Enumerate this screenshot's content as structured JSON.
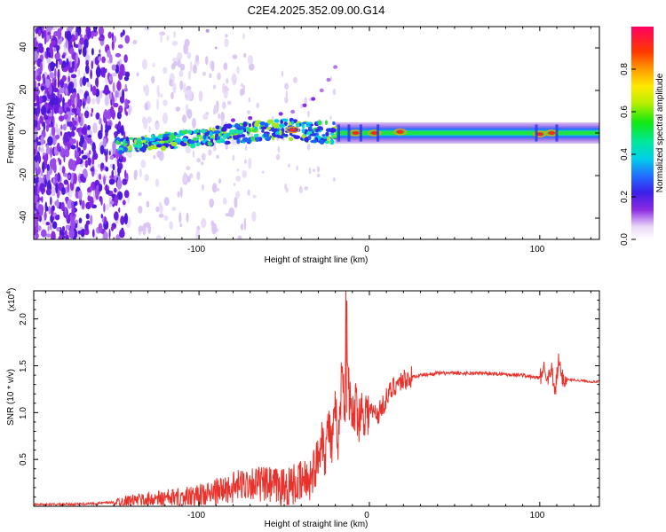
{
  "title": "C2E4.2025.352.09.00.G14",
  "top_panel": {
    "xlabel": "Height of straight line (km)",
    "ylabel": "Frequency (Hz)",
    "xticks": [
      "-100",
      "0",
      "100"
    ],
    "yticks": [
      "40",
      "20",
      "0",
      "-20",
      "-40"
    ]
  },
  "colorbar": {
    "label": "Normalized spectral amplitude",
    "ticks": [
      "0.0",
      "0.2",
      "0.4",
      "0.6",
      "0.8"
    ]
  },
  "bottom_panel": {
    "xlabel": "Height of straight line (km)",
    "ylabel": "SNR (10 * v/v)",
    "exponent": "(x10",
    "exponent_power": "4",
    "exponent_close": ")",
    "xticks": [
      "-100",
      "0",
      "100"
    ],
    "yticks": [
      "2.0",
      "1.5",
      "1.0",
      "0.5"
    ]
  },
  "chart_data": [
    {
      "type": "heatmap",
      "title": "C2E4.2025.352.09.00.G14",
      "xlabel": "Height of straight line (km)",
      "ylabel": "Frequency (Hz)",
      "xlim": [
        -197,
        135
      ],
      "ylim": [
        -50,
        50
      ],
      "colorbar": {
        "label": "Normalized spectral amplitude",
        "range": [
          0,
          1
        ]
      },
      "ridge": {
        "x": [
          -145,
          -100,
          -50,
          -20,
          0,
          20,
          100,
          135
        ],
        "freq": [
          -6,
          -2,
          2,
          0,
          0,
          0,
          0,
          0
        ]
      }
    },
    {
      "type": "line",
      "xlabel": "Height of straight line (km)",
      "ylabel": "SNR (10 * v/v)",
      "y_multiplier": 10000,
      "xlim": [
        -197,
        135
      ],
      "ylim": [
        0,
        2.3
      ],
      "series": [
        {
          "name": "SNR",
          "color": "#e8322b",
          "x": [
            -197,
            -180,
            -160,
            -145,
            -130,
            -110,
            -100,
            -90,
            -80,
            -70,
            -60,
            -50,
            -40,
            -35,
            -30,
            -28,
            -26,
            -24,
            -22,
            -20,
            -18,
            -16,
            -14,
            -13.8,
            -13,
            -12,
            -10,
            -8,
            -6,
            -4,
            -2,
            0,
            5,
            10,
            15,
            20,
            25,
            30,
            40,
            50,
            60,
            70,
            80,
            90,
            95,
            100,
            103,
            105,
            107,
            109,
            111,
            113,
            115,
            120,
            125,
            130,
            135
          ],
          "values": [
            0.02,
            0.02,
            0.03,
            0.05,
            0.07,
            0.09,
            0.1,
            0.15,
            0.2,
            0.26,
            0.22,
            0.2,
            0.25,
            0.3,
            0.5,
            0.8,
            0.55,
            0.9,
            0.6,
            1.0,
            0.7,
            1.5,
            1.0,
            2.3,
            1.8,
            1.2,
            0.9,
            1.1,
            0.95,
            1.05,
            1.0,
            1.02,
            0.98,
            1.15,
            1.3,
            1.35,
            1.38,
            1.4,
            1.42,
            1.42,
            1.42,
            1.42,
            1.41,
            1.4,
            1.38,
            1.37,
            1.5,
            1.35,
            1.45,
            1.2,
            1.55,
            1.38,
            1.35,
            1.35,
            1.34,
            1.33,
            1.33
          ]
        }
      ]
    }
  ]
}
